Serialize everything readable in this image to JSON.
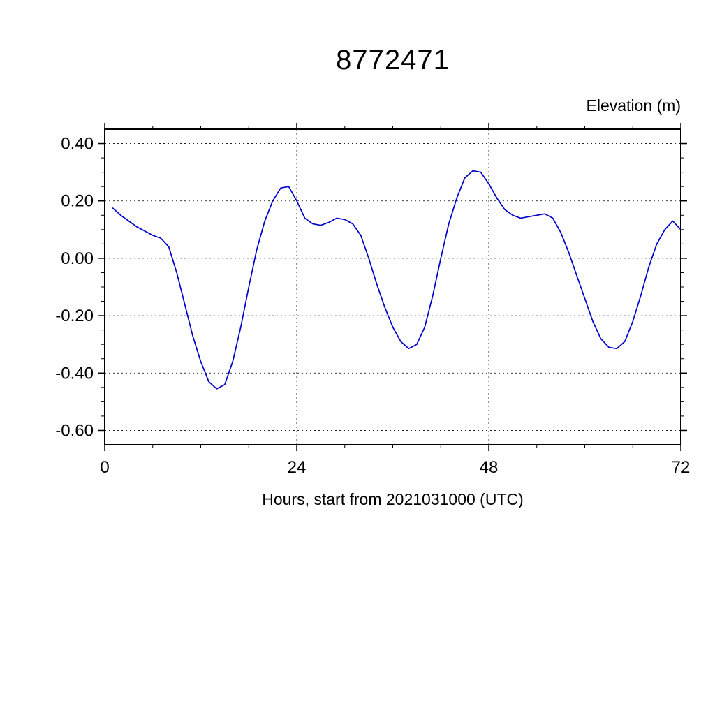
{
  "page": {
    "background": "#ffffff"
  },
  "chart_data": {
    "type": "line",
    "title": "8772471",
    "ylabel": "Elevation (m)",
    "xlabel": "Hours, start from 2021031000 (UTC)",
    "xlim": [
      0,
      72
    ],
    "ylim": [
      -0.65,
      0.45
    ],
    "x_major_ticks": [
      0,
      24,
      48,
      72
    ],
    "x_minor_step": 6,
    "y_major_ticks": [
      0.4,
      0.2,
      0.0,
      -0.2,
      -0.4,
      -0.6
    ],
    "y_minor_step": 0.05,
    "grid": true,
    "legend": "none",
    "line_color": "#0000cc",
    "axis_color": "#000000",
    "series": [
      {
        "name": "elevation",
        "x": [
          1,
          2,
          3,
          4,
          5,
          6,
          7,
          8,
          9,
          10,
          11,
          12,
          13,
          14,
          15,
          16,
          17,
          18,
          19,
          20,
          21,
          22,
          23,
          24,
          25,
          26,
          27,
          28,
          29,
          30,
          31,
          32,
          33,
          34,
          35,
          36,
          37,
          38,
          39,
          40,
          41,
          42,
          43,
          44,
          45,
          46,
          47,
          48,
          49,
          50,
          51,
          52,
          53,
          54,
          55,
          56,
          57,
          58,
          59,
          60,
          61,
          62,
          63,
          64,
          65,
          66,
          67,
          68,
          69,
          70,
          71,
          72
        ],
        "y": [
          0.175,
          0.15,
          0.13,
          0.11,
          0.095,
          0.08,
          0.07,
          0.04,
          -0.05,
          -0.16,
          -0.27,
          -0.36,
          -0.43,
          -0.455,
          -0.44,
          -0.36,
          -0.24,
          -0.1,
          0.03,
          0.13,
          0.2,
          0.245,
          0.25,
          0.2,
          0.14,
          0.12,
          0.115,
          0.125,
          0.14,
          0.135,
          0.12,
          0.08,
          0.0,
          -0.09,
          -0.17,
          -0.24,
          -0.29,
          -0.315,
          -0.3,
          -0.24,
          -0.13,
          0.0,
          0.12,
          0.21,
          0.28,
          0.305,
          0.3,
          0.26,
          0.21,
          0.17,
          0.15,
          0.14,
          0.145,
          0.15,
          0.155,
          0.14,
          0.09,
          0.02,
          -0.06,
          -0.14,
          -0.22,
          -0.28,
          -0.31,
          -0.315,
          -0.29,
          -0.22,
          -0.13,
          -0.03,
          0.05,
          0.1,
          0.13,
          0.1
        ]
      }
    ]
  }
}
